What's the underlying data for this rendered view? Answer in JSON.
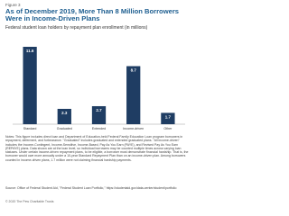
{
  "figure_label": "Figure 3",
  "notes": "Notes: This figure includes direct loan and Department of Education-held Federal Family Education Loan program borrowers in repayment, deferment, and forbearance. \"Graduated\" includes graduated and extended graduated plans. \"All income-driven\" includes the Income-Contingent, Income-Sensitive, Income-Based, Pay As You Earn (PAYE), and Revised Pay As You Earn (REPAYE) plans. Data shown are at the loan level, so individual borrowers may be counted multiple times across varying loan statuses. Under certain income-driven repayment plans, to be eligible, a borrower must demonstrate financial hardship. That is, the borrower would owe more annually under a 10-year Standard Repayment Plan than on an income-driven plan. Among borrowers counted in income-driven plans, 1.7 million were not claiming financial hardship payments.",
  "source": "Source: Office of Federal Student Aid, \"Federal Student Loan Portfolio,\" https://studentaid.gov/data-center/student/portfolio",
  "copyright": "© 2020 The Pew Charitable Trusts",
  "chart_data": {
    "type": "bar",
    "title": "As of December 2019, More Than 8 Million Borrowers Were in Income-Driven Plans",
    "subtitle": "Federal student loan holders by repayment plan enrollment (in millions)",
    "categories": [
      "Standard",
      "Graduated",
      "Extended",
      "Income-driven",
      "Other"
    ],
    "values": [
      11.6,
      2.3,
      2.7,
      8.7,
      1.7
    ],
    "color": "#1f3d63"
  }
}
